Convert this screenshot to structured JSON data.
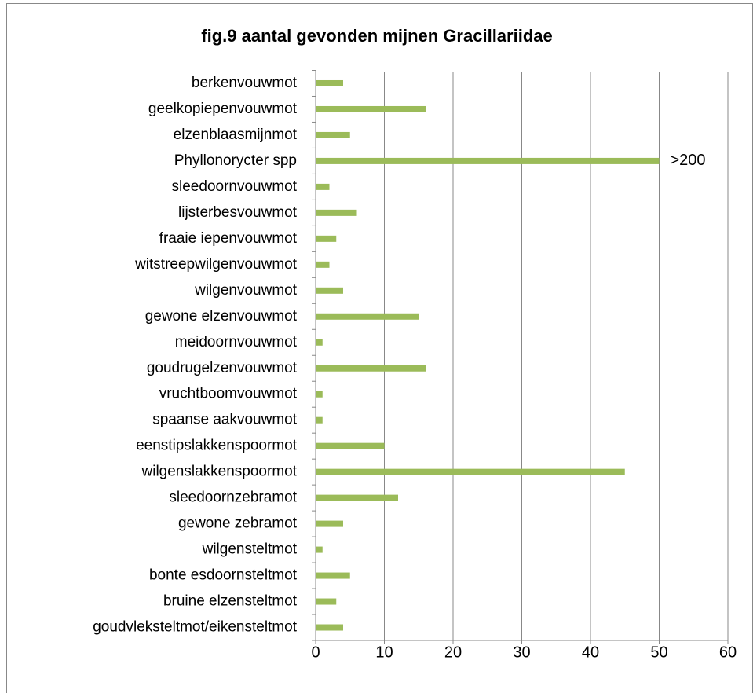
{
  "chart_data": {
    "type": "barh",
    "title": "fig.9  aantal gevonden mijnen Gracillariidae",
    "categories": [
      "berkenvouwmot",
      "geelkopiepenvouwmot",
      "elzenblaasmijnmot",
      "Phyllonorycter spp",
      "sleedoornvouwmot",
      "lijsterbesvouwmot",
      "fraaie iepenvouwmot",
      "witstreepwilgenvouwmot",
      "wilgenvouwmot",
      "gewone elzenvouwmot",
      "meidoornvouwmot",
      "goudrugelzenvouwmot",
      "vruchtboomvouwmot",
      "spaanse aakvouwmot",
      "eenstipslakkenspoormot",
      "wilgenslakkenspoormot",
      "sleedoornzebramot",
      "gewone zebramot",
      "wilgensteltmot",
      "bonte esdoornsteltmot",
      "bruine elzensteltmot",
      "goudvleksteltmot/eikensteltmot"
    ],
    "values": [
      4,
      16,
      5,
      50,
      2,
      6,
      3,
      2,
      4,
      15,
      1,
      16,
      1,
      1,
      10,
      45,
      12,
      4,
      1,
      5,
      3,
      4
    ],
    "color": "#9bbb59",
    "annotation": ">200",
    "xlim": [
      0,
      60
    ],
    "xticks": [
      0,
      10,
      20,
      30,
      40,
      50,
      60
    ],
    "grid": true
  }
}
